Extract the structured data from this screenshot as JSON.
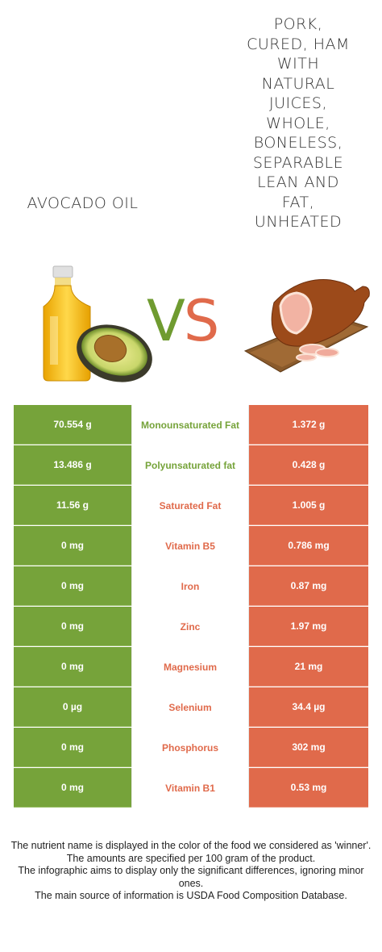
{
  "food_left": {
    "name": "Avocado oil",
    "color": "#76a33a"
  },
  "food_right": {
    "name": "Pork, cured, ham with natural juices, whole, boneless, separable lean and fat, unheated",
    "color": "#e06a4b"
  },
  "vs": {
    "v": "V",
    "s": "S"
  },
  "nutrients": [
    {
      "name": "Monounsaturated Fat",
      "left": "70.554 g",
      "right": "1.372 g",
      "winner": "left"
    },
    {
      "name": "Polyunsaturated fat",
      "left": "13.486 g",
      "right": "0.428 g",
      "winner": "left"
    },
    {
      "name": "Saturated Fat",
      "left": "11.56 g",
      "right": "1.005 g",
      "winner": "right"
    },
    {
      "name": "Vitamin B5",
      "left": "0 mg",
      "right": "0.786 mg",
      "winner": "right"
    },
    {
      "name": "Iron",
      "left": "0 mg",
      "right": "0.87 mg",
      "winner": "right"
    },
    {
      "name": "Zinc",
      "left": "0 mg",
      "right": "1.97 mg",
      "winner": "right"
    },
    {
      "name": "Magnesium",
      "left": "0 mg",
      "right": "21 mg",
      "winner": "right"
    },
    {
      "name": "Selenium",
      "left": "0 µg",
      "right": "34.4 µg",
      "winner": "right"
    },
    {
      "name": "Phosphorus",
      "left": "0 mg",
      "right": "302 mg",
      "winner": "right"
    },
    {
      "name": "Vitamin B1",
      "left": "0 mg",
      "right": "0.53 mg",
      "winner": "right"
    }
  ],
  "footer": {
    "line1": "The nutrient name is displayed in the color of the food we considered as 'winner'.",
    "line2": "The amounts are specified per 100 gram of the product.",
    "line3": "The infographic aims to display only the significant differences, ignoring minor ones.",
    "line4": "The main source of information is USDA Food Composition Database."
  }
}
